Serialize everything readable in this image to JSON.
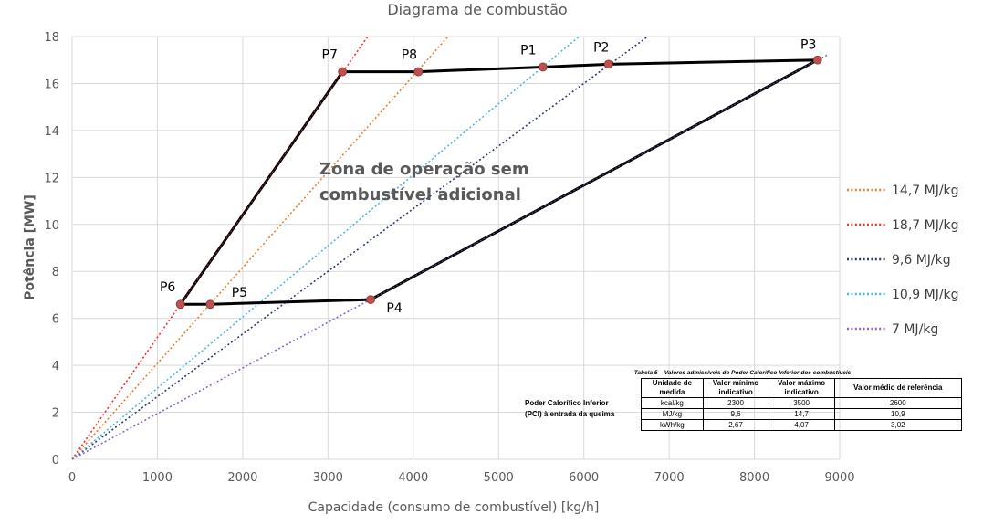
{
  "chart_data": {
    "type": "line",
    "title": "Diagrama de combustão",
    "xlabel": "Capacidade (consumo de combustível) [kg/h]",
    "ylabel": "Potência [MW]",
    "xlim": [
      0,
      9000
    ],
    "ylim": [
      0,
      18
    ],
    "xticks": [
      0,
      1000,
      2000,
      3000,
      4000,
      5000,
      6000,
      7000,
      8000,
      9000
    ],
    "yticks": [
      0,
      2,
      4,
      6,
      8,
      10,
      12,
      14,
      16,
      18
    ],
    "grid": true,
    "legend_position": "right",
    "reference_lines": [
      {
        "name": "14,7 MJ/kg",
        "color": "#ED7D31",
        "slope": 4.083,
        "x_end": 4408
      },
      {
        "name": "18,7 MJ/kg",
        "color": "#FF2A2A",
        "slope": 5.194,
        "x_end": 3465
      },
      {
        "name": "9,6 MJ/kg",
        "color": "#2E3A6E",
        "slope": 2.667,
        "x_end": 6749
      },
      {
        "name": "10,9 MJ/kg",
        "color": "#4DB6E8",
        "slope": 3.028,
        "x_end": 5945
      },
      {
        "name": "7 MJ/kg",
        "color": "#8B66C7",
        "slope": 1.944,
        "x_end": 8850
      }
    ],
    "points": [
      {
        "label": "P1",
        "x": 5520,
        "y": 16.7
      },
      {
        "label": "P2",
        "x": 6290,
        "y": 16.82
      },
      {
        "label": "P3",
        "x": 8740,
        "y": 17.0
      },
      {
        "label": "P4",
        "x": 3500,
        "y": 6.8
      },
      {
        "label": "P5",
        "x": 1620,
        "y": 6.6
      },
      {
        "label": "P6",
        "x": 1270,
        "y": 6.6
      },
      {
        "label": "P7",
        "x": 3170,
        "y": 16.5
      },
      {
        "label": "P8",
        "x": 4060,
        "y": 16.5
      }
    ],
    "envelope_order": [
      "P6",
      "P7",
      "P8",
      "P1",
      "P2",
      "P3",
      "P4",
      "P5",
      "P6"
    ],
    "annotation": [
      "Zona de operação sem",
      "combustível adicional"
    ]
  },
  "ref_table": {
    "caption": "Tabela 5 – Valores admissíveis do Poder Calorífico Inferior dos combustíveis",
    "headers": [
      "Unidade de medida",
      "Valor mínimo indicativo",
      "Valor máximo indicativo",
      "Valor médio de referência"
    ],
    "row_label": [
      "Poder Calorífico Inferior",
      "(PCI) à entrada da queima"
    ],
    "rows": [
      [
        "kcal/kg",
        "2300",
        "3500",
        "2600"
      ],
      [
        "MJ/kg",
        "9,6",
        "14,7",
        "10,9"
      ],
      [
        "kWh/kg",
        "2,67",
        "4,07",
        "3,02"
      ]
    ]
  }
}
